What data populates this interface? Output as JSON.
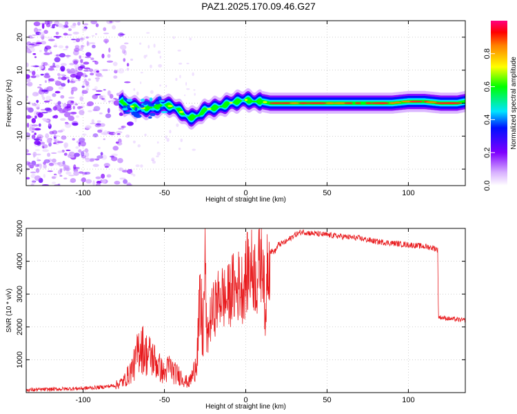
{
  "title": "PAZ1.2025.170.09.46.G27",
  "chart_data": [
    {
      "type": "heatmap",
      "title": "PAZ1.2025.170.09.46.G27",
      "xlabel": "Height of straight line (km)",
      "ylabel": "Frequency (Hz)",
      "xlim": [
        -135,
        135
      ],
      "ylim": [
        -25,
        25
      ],
      "x_ticks": [
        -100,
        -50,
        0,
        50,
        100
      ],
      "y_ticks": [
        -20,
        -10,
        0,
        10,
        20
      ],
      "grid": true,
      "colorbar": {
        "label": "Normalized spectral amplitude",
        "range": [
          0,
          1
        ],
        "ticks": [
          0.0,
          0.2,
          0.4,
          0.6,
          0.8
        ],
        "colormap": [
          "#ffffff",
          "#d9b3ff",
          "#7f00ff",
          "#0000ff",
          "#00e5ff",
          "#00ff00",
          "#ffff00",
          "#ff8000",
          "#ff0000",
          "#ff0080"
        ]
      },
      "ridge": {
        "x": [
          -75,
          -70,
          -65,
          -60,
          -55,
          -50,
          -45,
          -40,
          -35,
          -30,
          -25,
          -20,
          -15,
          -10,
          -5,
          0,
          5,
          10,
          15,
          20,
          30,
          40,
          50,
          60,
          70,
          80,
          90,
          100,
          110,
          120,
          130,
          135
        ],
        "freq": [
          -0.5,
          -1.0,
          -1.5,
          -1.5,
          -1.0,
          -0.5,
          -1.0,
          -2.5,
          -4.5,
          -4.0,
          -2.0,
          -1.5,
          -1.0,
          0.0,
          0.5,
          1.0,
          0.5,
          0.5,
          0.0,
          0.0,
          0.0,
          0.0,
          0.0,
          0.0,
          0.0,
          0.0,
          0.0,
          0.5,
          0.5,
          0.0,
          0.0,
          0.5
        ]
      }
    },
    {
      "type": "line",
      "xlabel": "Height of straight line (km)",
      "ylabel": "SNR (10 * v/v)",
      "xlim": [
        -135,
        135
      ],
      "ylim": [
        0,
        5000
      ],
      "x_ticks": [
        -100,
        -50,
        0,
        50,
        100
      ],
      "y_ticks": [
        1000,
        2000,
        3000,
        4000,
        5000
      ],
      "grid": true,
      "series": [
        {
          "color": "#e8191c",
          "x": [
            -135,
            -120,
            -100,
            -90,
            -80,
            -75,
            -72,
            -68,
            -65,
            -62,
            -58,
            -55,
            -52,
            -50,
            -47,
            -44,
            -40,
            -37,
            -35,
            -32,
            -30,
            -28,
            -26,
            -25,
            -24,
            -22,
            -20,
            -18,
            -15,
            -12,
            -10,
            -8,
            -6,
            -4,
            -2,
            0,
            2,
            5,
            7,
            9,
            11,
            12,
            13,
            15,
            18,
            20,
            25,
            30,
            35,
            40,
            50,
            60,
            70,
            80,
            90,
            100,
            110,
            116,
            118,
            118.5,
            125,
            135
          ],
          "values": [
            80,
            100,
            130,
            160,
            220,
            350,
            550,
            900,
            1500,
            1200,
            1100,
            900,
            700,
            550,
            800,
            600,
            500,
            350,
            300,
            600,
            1200,
            2500,
            1800,
            4500,
            1500,
            2200,
            2500,
            2700,
            3000,
            2800,
            3000,
            3200,
            3100,
            3300,
            3200,
            3500,
            3800,
            3700,
            3400,
            4100,
            4200,
            1500,
            4000,
            4300,
            4300,
            4500,
            4600,
            4800,
            4900,
            4850,
            4800,
            4750,
            4700,
            4600,
            4550,
            4500,
            4450,
            4400,
            4350,
            2300,
            2250,
            2200
          ]
        }
      ]
    }
  ]
}
